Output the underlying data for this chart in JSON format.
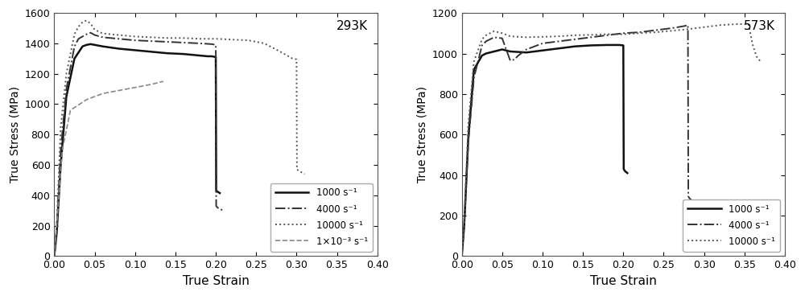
{
  "plot1": {
    "title": "293K",
    "xlabel": "True Strain",
    "ylabel": "True Stress (MPa)",
    "xlim": [
      0.0,
      0.4
    ],
    "ylim": [
      0,
      1600
    ],
    "yticks": [
      0,
      200,
      400,
      600,
      800,
      1000,
      1200,
      1400,
      1600
    ],
    "xticks": [
      0.0,
      0.05,
      0.1,
      0.15,
      0.2,
      0.25,
      0.3,
      0.35,
      0.4
    ],
    "curves": {
      "1000": {
        "label": "1000 s⁻¹",
        "color": "#111111",
        "linestyle": "solid",
        "linewidth": 1.8,
        "x": [
          0.0,
          0.003,
          0.008,
          0.015,
          0.025,
          0.035,
          0.04,
          0.045,
          0.05,
          0.06,
          0.08,
          0.1,
          0.12,
          0.14,
          0.16,
          0.17,
          0.18,
          0.19,
          0.195,
          0.2,
          0.2005,
          0.202,
          0.205
        ],
        "y": [
          0,
          150,
          600,
          1050,
          1300,
          1380,
          1390,
          1395,
          1390,
          1380,
          1365,
          1355,
          1345,
          1335,
          1330,
          1325,
          1320,
          1315,
          1315,
          1310,
          430,
          425,
          415
        ]
      },
      "4000": {
        "label": "4000 s⁻¹",
        "color": "#333333",
        "linestyle": "dashdot",
        "linewidth": 1.4,
        "x": [
          0.0,
          0.003,
          0.008,
          0.015,
          0.025,
          0.03,
          0.04,
          0.045,
          0.05,
          0.06,
          0.08,
          0.1,
          0.12,
          0.14,
          0.16,
          0.18,
          0.195,
          0.2,
          0.2005,
          0.202,
          0.205,
          0.21
        ],
        "y": [
          0,
          180,
          700,
          1100,
          1380,
          1430,
          1460,
          1470,
          1455,
          1440,
          1430,
          1420,
          1415,
          1410,
          1405,
          1400,
          1395,
          1390,
          330,
          320,
          310,
          300
        ]
      },
      "10000": {
        "label": "10000 s⁻¹",
        "color": "#555555",
        "linestyle": "dotted",
        "linewidth": 1.4,
        "x": [
          0.0,
          0.003,
          0.008,
          0.015,
          0.025,
          0.03,
          0.035,
          0.04,
          0.045,
          0.05,
          0.06,
          0.08,
          0.1,
          0.12,
          0.14,
          0.16,
          0.18,
          0.2,
          0.22,
          0.24,
          0.26,
          0.28,
          0.295,
          0.3,
          0.3005,
          0.305,
          0.31
        ],
        "y": [
          0,
          200,
          850,
          1200,
          1460,
          1510,
          1540,
          1550,
          1530,
          1490,
          1465,
          1455,
          1445,
          1440,
          1435,
          1435,
          1430,
          1430,
          1425,
          1420,
          1400,
          1345,
          1300,
          1295,
          570,
          555,
          540
        ]
      },
      "quasi": {
        "label": "1×10⁻³ s⁻¹",
        "color": "#888888",
        "linestyle": "dashed",
        "linewidth": 1.2,
        "x": [
          0.0,
          0.01,
          0.02,
          0.04,
          0.06,
          0.08,
          0.1,
          0.12,
          0.135
        ],
        "y": [
          0,
          700,
          960,
          1030,
          1070,
          1090,
          1110,
          1130,
          1150
        ]
      }
    }
  },
  "plot2": {
    "title": "573K",
    "xlabel": "True Strain",
    "ylabel": "True Stress (MPa)",
    "xlim": [
      0.0,
      0.4
    ],
    "ylim": [
      0,
      1200
    ],
    "yticks": [
      0,
      200,
      400,
      600,
      800,
      1000,
      1200
    ],
    "xticks": [
      0.0,
      0.05,
      0.1,
      0.15,
      0.2,
      0.25,
      0.3,
      0.35,
      0.4
    ],
    "curves": {
      "1000": {
        "label": "1000 s⁻¹",
        "color": "#111111",
        "linestyle": "solid",
        "linewidth": 1.8,
        "x": [
          0.0,
          0.003,
          0.008,
          0.015,
          0.025,
          0.03,
          0.04,
          0.05,
          0.06,
          0.08,
          0.1,
          0.12,
          0.14,
          0.16,
          0.18,
          0.195,
          0.2,
          0.2005,
          0.202,
          0.205
        ],
        "y": [
          0,
          150,
          580,
          920,
          990,
          1000,
          1010,
          1020,
          1010,
          1005,
          1015,
          1025,
          1035,
          1040,
          1042,
          1042,
          1040,
          430,
          420,
          410
        ]
      },
      "4000": {
        "label": "4000 s⁻¹",
        "color": "#333333",
        "linestyle": "dashdot",
        "linewidth": 1.4,
        "x": [
          0.0,
          0.003,
          0.008,
          0.015,
          0.025,
          0.03,
          0.04,
          0.05,
          0.06,
          0.065,
          0.07,
          0.08,
          0.1,
          0.12,
          0.14,
          0.16,
          0.18,
          0.2,
          0.22,
          0.24,
          0.26,
          0.275,
          0.28,
          0.2805,
          0.282,
          0.285,
          0.29,
          0.295,
          0.3
        ],
        "y": [
          0,
          150,
          560,
          880,
          1040,
          1060,
          1080,
          1075,
          965,
          970,
          990,
          1020,
          1050,
          1060,
          1070,
          1080,
          1090,
          1100,
          1105,
          1115,
          1125,
          1135,
          1140,
          295,
          285,
          275,
          265,
          255,
          245
        ]
      },
      "10000": {
        "label": "10000 s⁻¹",
        "color": "#555555",
        "linestyle": "dotted",
        "linewidth": 1.4,
        "x": [
          0.0,
          0.003,
          0.008,
          0.015,
          0.025,
          0.03,
          0.04,
          0.05,
          0.06,
          0.08,
          0.1,
          0.12,
          0.14,
          0.16,
          0.18,
          0.2,
          0.22,
          0.24,
          0.26,
          0.28,
          0.3,
          0.32,
          0.34,
          0.355,
          0.36,
          0.365,
          0.37
        ],
        "y": [
          0,
          170,
          650,
          960,
          1070,
          1090,
          1110,
          1100,
          1085,
          1080,
          1082,
          1085,
          1090,
          1092,
          1095,
          1095,
          1100,
          1105,
          1112,
          1120,
          1130,
          1140,
          1145,
          1145,
          1045,
          985,
          960
        ]
      }
    }
  }
}
